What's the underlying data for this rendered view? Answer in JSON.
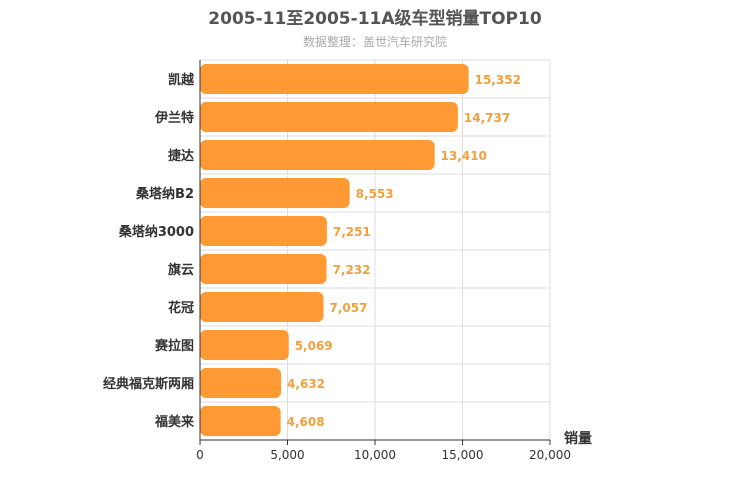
{
  "chart_data": {
    "type": "bar",
    "orientation": "horizontal",
    "title": "2005-11至2005-11A级车型销量TOP10",
    "subtitle": "数据整理：盖世汽车研究院",
    "categories": [
      "凯越",
      "伊兰特",
      "捷达",
      "桑塔纳B2",
      "桑塔纳3000",
      "旗云",
      "花冠",
      "赛拉图",
      "经典福克斯两厢",
      "福美来"
    ],
    "values": [
      15352,
      14737,
      13410,
      8553,
      7251,
      7232,
      7057,
      5069,
      4632,
      4608
    ],
    "value_labels": [
      "15,352",
      "14,737",
      "13,410",
      "8,553",
      "7,251",
      "7,232",
      "7,057",
      "5,069",
      "4,632",
      "4,608"
    ],
    "xlabel": "销量",
    "xlim": [
      0,
      20000
    ],
    "ticks": [
      0,
      5000,
      10000,
      15000,
      20000
    ],
    "tick_labels": [
      "0",
      "5,000",
      "10,000",
      "15,000",
      "20,000"
    ],
    "grid": true,
    "colors": {
      "bar": "#ff9933",
      "value_label": "#f0a040",
      "grid": "#dddddd",
      "axis": "#333333"
    }
  }
}
